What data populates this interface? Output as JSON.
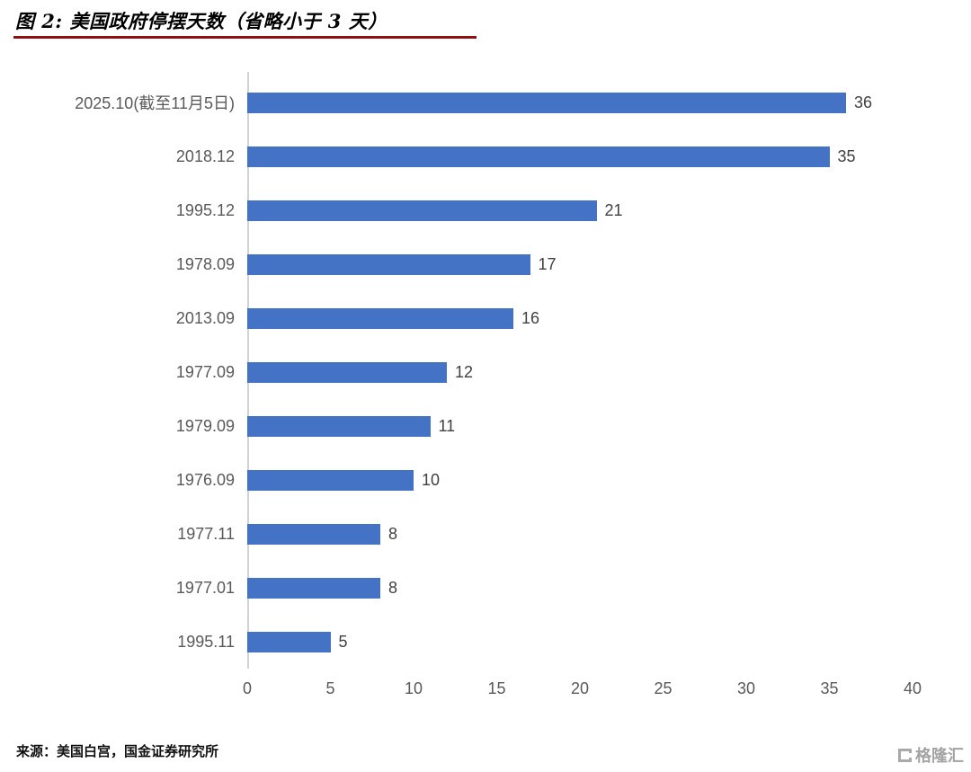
{
  "header": {
    "title": "图 2: 美国政府停摆天数（省略小于 3 天）",
    "rule_color": "#8f1010"
  },
  "footer": {
    "source": "来源：美国白宫，国金证券研究所",
    "logo_text": "格隆汇"
  },
  "chart_data": {
    "type": "bar",
    "orientation": "horizontal",
    "title": "图 2: 美国政府停摆天数（省略小于 3 天）",
    "categories": [
      "2025.10(截至11月5日)",
      "2018.12",
      "1995.12",
      "1978.09",
      "2013.09",
      "1977.09",
      "1979.09",
      "1976.09",
      "1977.11",
      "1977.01",
      "1995.11"
    ],
    "values": [
      36,
      35,
      21,
      17,
      16,
      12,
      11,
      10,
      8,
      8,
      5
    ],
    "x_ticks": [
      0,
      5,
      10,
      15,
      20,
      25,
      30,
      35,
      40
    ],
    "xlim": [
      0,
      40
    ],
    "bar_color": "#4472C4",
    "value_labels_shown": true,
    "grid": false,
    "legend": "none",
    "xlabel": "",
    "ylabel": ""
  }
}
